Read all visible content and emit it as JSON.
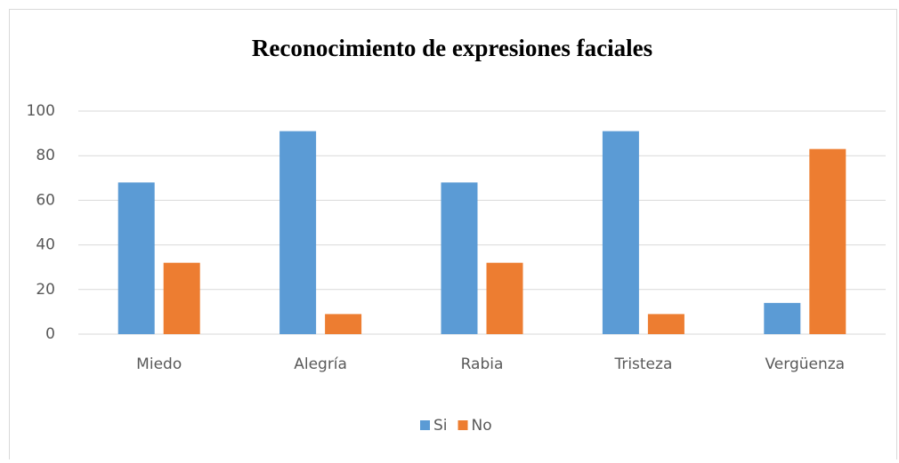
{
  "chart_data": {
    "type": "bar",
    "title": "Reconocimiento de expresiones faciales",
    "categories": [
      "Miedo",
      "Alegría",
      "Rabia",
      "Tristeza",
      "Vergüenza"
    ],
    "series": [
      {
        "name": "Si",
        "color": "#5b9bd5",
        "values": [
          68,
          91,
          68,
          91,
          14
        ]
      },
      {
        "name": "No",
        "color": "#ed7d31",
        "values": [
          32,
          9,
          32,
          9,
          83
        ]
      }
    ],
    "ylim": [
      0,
      100
    ],
    "yticks": [
      0,
      20,
      40,
      60,
      80,
      100
    ],
    "grid": true,
    "legend": "bottom"
  }
}
